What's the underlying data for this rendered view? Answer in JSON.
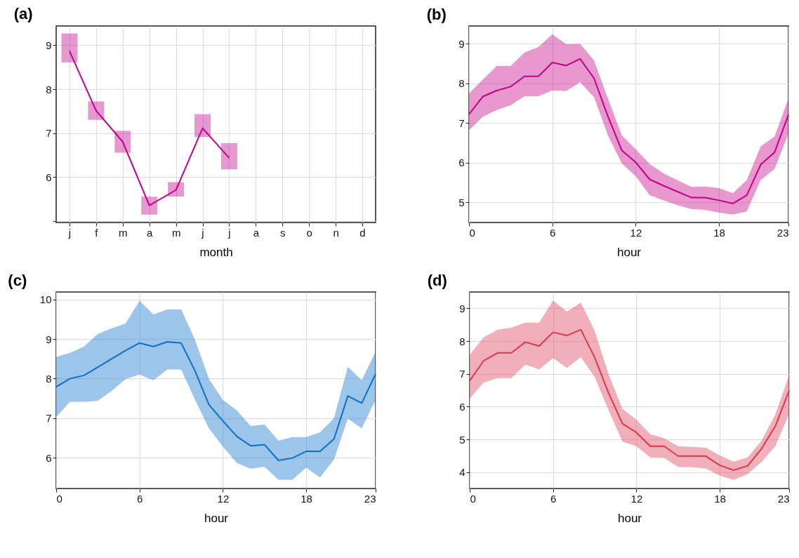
{
  "chart_data": [
    {
      "type": "line",
      "title": "(a)",
      "xlabel": "month",
      "categories": [
        "j",
        "f",
        "m",
        "a",
        "m",
        "j",
        "j",
        "a",
        "s",
        "o",
        "n",
        "d"
      ],
      "ylim": [
        4.96,
        9.44
      ],
      "yticks": [
        {
          "value": 5,
          "label": null
        },
        6,
        7,
        8,
        9
      ],
      "grid": true,
      "series": [
        {
          "color": "#c0008c",
          "values": [
            8.87,
            7.51,
            6.8,
            5.35,
            5.7,
            7.11,
            6.43,
            null,
            null,
            null,
            null,
            null
          ],
          "errors": [
            [
              8.61,
              9.27
            ],
            [
              7.3,
              7.72
            ],
            [
              6.55,
              7.05
            ],
            [
              5.14,
              5.55
            ],
            [
              5.55,
              5.88
            ],
            [
              6.91,
              7.43
            ],
            [
              6.17,
              6.77
            ],
            null,
            null,
            null,
            null,
            null
          ]
        }
      ]
    },
    {
      "type": "line",
      "title": "(b)",
      "xlabel": "hour",
      "x": [
        0,
        1,
        2,
        3,
        4,
        5,
        6,
        7,
        8,
        9,
        10,
        11,
        12,
        13,
        14,
        15,
        16,
        17,
        18,
        19,
        20,
        21,
        22,
        23
      ],
      "xlim": [
        0,
        23
      ],
      "xticks": [
        0,
        6,
        12,
        18,
        23
      ],
      "ylim": [
        4.49,
        9.45
      ],
      "yticks": [
        5,
        6,
        7,
        8,
        9
      ],
      "grid": true,
      "series": [
        {
          "color": "#c20087",
          "values": [
            7.22,
            7.67,
            7.82,
            7.92,
            8.18,
            8.18,
            8.53,
            8.45,
            8.62,
            8.13,
            7.17,
            6.31,
            6.01,
            5.58,
            5.42,
            5.27,
            5.12,
            5.12,
            5.05,
            4.97,
            5.18,
            5.95,
            6.26,
            7.21
          ],
          "lower": [
            6.82,
            7.16,
            7.33,
            7.45,
            7.68,
            7.68,
            7.82,
            7.81,
            8.03,
            7.65,
            6.69,
            5.98,
            5.66,
            5.18,
            5.05,
            4.93,
            4.83,
            4.81,
            4.74,
            4.69,
            4.77,
            5.56,
            5.84,
            6.73
          ],
          "upper": [
            7.75,
            8.1,
            8.44,
            8.44,
            8.78,
            8.92,
            9.24,
            8.99,
            9.0,
            8.58,
            7.62,
            6.69,
            6.34,
            5.97,
            5.73,
            5.56,
            5.39,
            5.4,
            5.36,
            5.23,
            5.56,
            6.41,
            6.66,
            7.62
          ]
        }
      ]
    },
    {
      "type": "line",
      "title": "(c)",
      "xlabel": "hour",
      "x": [
        0,
        1,
        2,
        3,
        4,
        5,
        6,
        7,
        8,
        9,
        10,
        11,
        12,
        13,
        14,
        15,
        16,
        17,
        18,
        19,
        20,
        21,
        22,
        23
      ],
      "xlim": [
        0,
        23
      ],
      "xticks": [
        0,
        6,
        12,
        18,
        23
      ],
      "ylim": [
        5.22,
        10.19
      ],
      "yticks": [
        6,
        7,
        8,
        9,
        10
      ],
      "grid": true,
      "series": [
        {
          "color": "#0a6fc9",
          "values": [
            7.79,
            8.0,
            8.08,
            8.29,
            8.5,
            8.71,
            8.9,
            8.81,
            8.93,
            8.9,
            8.19,
            7.34,
            6.93,
            6.54,
            6.3,
            6.33,
            5.93,
            5.99,
            6.16,
            6.16,
            6.47,
            7.56,
            7.38,
            8.12
          ],
          "lower": [
            7.03,
            7.41,
            7.41,
            7.44,
            7.69,
            7.99,
            8.1,
            7.96,
            8.23,
            8.23,
            7.46,
            6.74,
            6.28,
            5.87,
            5.72,
            5.77,
            5.44,
            5.44,
            5.75,
            5.5,
            5.95,
            6.99,
            6.74,
            7.46
          ],
          "upper": [
            8.55,
            8.65,
            8.81,
            9.13,
            9.27,
            9.39,
            9.97,
            9.62,
            9.75,
            9.75,
            8.98,
            7.99,
            7.46,
            7.2,
            6.8,
            6.84,
            6.43,
            6.52,
            6.52,
            6.64,
            7.0,
            8.3,
            7.96,
            8.68
          ]
        }
      ]
    },
    {
      "type": "line",
      "title": "(d)",
      "xlabel": "hour",
      "x": [
        0,
        1,
        2,
        3,
        4,
        5,
        6,
        7,
        8,
        9,
        10,
        11,
        12,
        13,
        14,
        15,
        16,
        17,
        18,
        19,
        20,
        21,
        22,
        23
      ],
      "xlim": [
        0,
        23
      ],
      "xticks": [
        0,
        6,
        12,
        18,
        23
      ],
      "ylim": [
        3.5,
        9.5
      ],
      "yticks": [
        4,
        5,
        6,
        7,
        8,
        9
      ],
      "grid": true,
      "series": [
        {
          "color": "#d9384f",
          "values": [
            6.79,
            7.4,
            7.64,
            7.64,
            7.97,
            7.85,
            8.27,
            8.17,
            8.35,
            7.5,
            6.41,
            5.48,
            5.21,
            4.79,
            4.79,
            4.49,
            4.49,
            4.49,
            4.21,
            4.06,
            4.19,
            4.71,
            5.4,
            6.49
          ],
          "lower": [
            6.25,
            6.73,
            6.87,
            6.87,
            7.28,
            7.14,
            7.48,
            7.18,
            7.51,
            6.9,
            5.89,
            4.93,
            4.79,
            4.45,
            4.43,
            4.16,
            4.15,
            4.11,
            3.89,
            3.76,
            3.94,
            4.31,
            4.79,
            5.78
          ],
          "upper": [
            7.58,
            8.11,
            8.35,
            8.41,
            8.56,
            8.56,
            9.24,
            8.9,
            9.18,
            8.31,
            6.98,
            5.93,
            5.6,
            5.16,
            5.04,
            4.79,
            4.77,
            4.75,
            4.51,
            4.32,
            4.45,
            4.95,
            5.76,
            6.96
          ]
        }
      ]
    }
  ]
}
